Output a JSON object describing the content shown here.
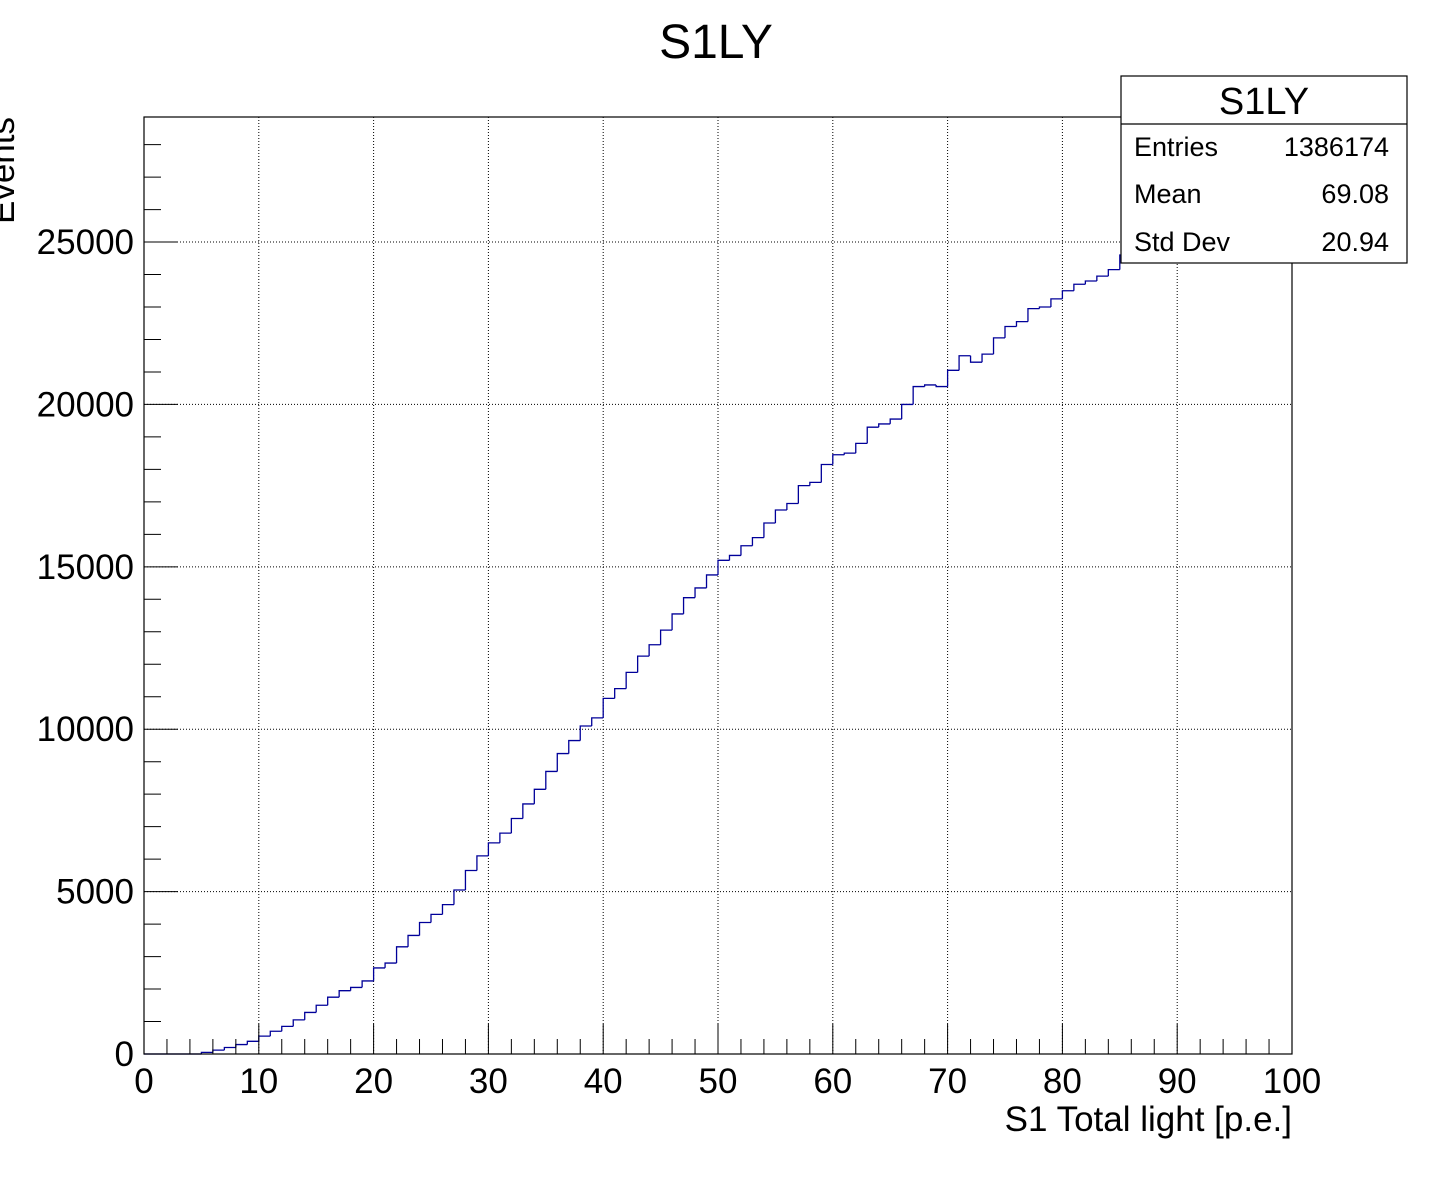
{
  "chart_data": {
    "type": "bar",
    "style": "step-histogram",
    "title": "S1LY",
    "xlabel": "S1 Total light [p.e.]",
    "ylabel": "Events",
    "xlim": [
      0,
      100
    ],
    "ylim": [
      0,
      28850
    ],
    "x_tick_labels": [
      "0",
      "10",
      "20",
      "30",
      "40",
      "50",
      "60",
      "70",
      "80",
      "90",
      "100"
    ],
    "y_tick_labels": [
      "0",
      "5000",
      "10000",
      "15000",
      "20000",
      "25000"
    ],
    "grid": true,
    "line_color": "#000099",
    "bin_width": 1,
    "bin_start": 0,
    "values": [
      0,
      0,
      0,
      0,
      0,
      50,
      120,
      200,
      290,
      390,
      550,
      700,
      850,
      1050,
      1280,
      1500,
      1750,
      1950,
      2050,
      2250,
      2650,
      2800,
      3300,
      3650,
      4050,
      4300,
      4600,
      5050,
      5650,
      6100,
      6500,
      6800,
      7250,
      7700,
      8150,
      8700,
      9250,
      9650,
      10100,
      10350,
      10950,
      11250,
      11750,
      12250,
      12600,
      13050,
      13550,
      14050,
      14350,
      14750,
      15200,
      15350,
      15650,
      15900,
      16350,
      16750,
      16950,
      17500,
      17600,
      18150,
      18450,
      18500,
      18800,
      19300,
      19400,
      19550,
      20000,
      20550,
      20600,
      20550,
      21050,
      21500,
      21300,
      21550,
      22050,
      22400,
      22550,
      22950,
      23000,
      23250,
      23500,
      23700,
      23800,
      23950,
      24150,
      24600,
      24950,
      25200,
      25450,
      25700,
      25900,
      26150,
      26350,
      26550,
      26700,
      26900,
      27050,
      27200,
      27350,
      27500
    ],
    "stats_box": {
      "title": "S1LY",
      "rows": [
        {
          "label": "Entries",
          "value": "1386174"
        },
        {
          "label": "Mean",
          "value": "69.08"
        },
        {
          "label": "Std Dev",
          "value": "20.94"
        }
      ]
    }
  }
}
